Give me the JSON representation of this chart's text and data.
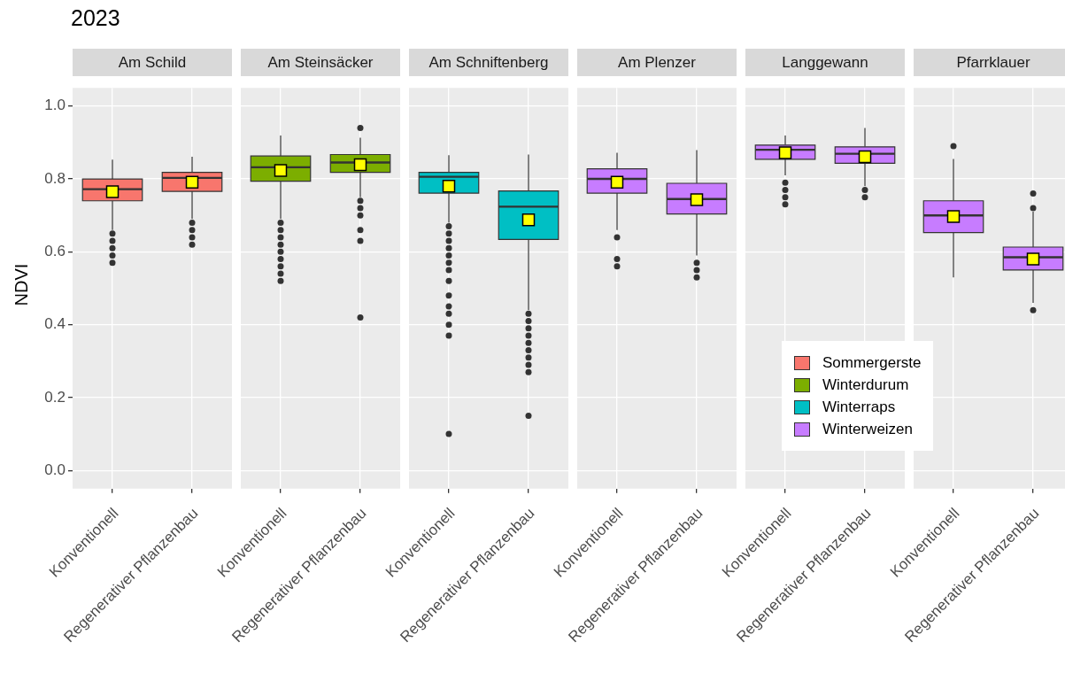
{
  "chart_data": [
    {
      "type": "box",
      "title": "2023",
      "subtitle": "Am Schild",
      "ylabel": "NDVI",
      "categories": [
        "Konventionell",
        "Regenerativer Pflanzenbau"
      ],
      "grid": true,
      "ylim": [
        -0.05,
        1.05
      ],
      "yticks": [
        {
          "value": 0,
          "label": "0.0"
        },
        {
          "value": 0.2,
          "label": "0.2"
        },
        {
          "value": 0.4,
          "label": "0.4"
        },
        {
          "value": 0.6,
          "label": "0.6"
        },
        {
          "value": 0.8,
          "label": "0.8"
        },
        {
          "value": 1,
          "label": "1.0"
        }
      ],
      "series": [
        {
          "name": "Sommergerste",
          "color": "#f8766d",
          "boxes": [
            {
              "low": 0.66,
              "q1": 0.74,
              "median": 0.772,
              "q3": 0.8,
              "high": 0.853,
              "mean": 0.765,
              "outliers": [
                0.65,
                0.63,
                0.61,
                0.59,
                0.57
              ]
            },
            {
              "low": 0.69,
              "q1": 0.766,
              "median": 0.803,
              "q3": 0.818,
              "high": 0.861,
              "mean": 0.791,
              "outliers": [
                0.68,
                0.66,
                0.64,
                0.62
              ]
            }
          ]
        }
      ]
    },
    {
      "type": "box",
      "subtitle": "Am Steinsäcker",
      "categories": [
        "Konventionell",
        "Regenerativer Pflanzenbau"
      ],
      "grid": true,
      "tick_labels": "x",
      "ylim": [
        -0.05,
        1.05
      ],
      "yticks": [
        0,
        0.2,
        0.4,
        0.6,
        0.8,
        1
      ],
      "series": [
        {
          "name": "Winterdurum",
          "color": "#7cae00",
          "boxes": [
            {
              "low": 0.69,
              "q1": 0.794,
              "median": 0.832,
              "q3": 0.863,
              "high": 0.919,
              "mean": 0.823,
              "outliers": [
                0.68,
                0.66,
                0.64,
                0.62,
                0.6,
                0.58,
                0.56,
                0.54,
                0.52
              ]
            },
            {
              "low": 0.75,
              "q1": 0.818,
              "median": 0.845,
              "q3": 0.867,
              "high": 0.913,
              "mean": 0.839,
              "outliers": [
                0.94,
                0.74,
                0.72,
                0.7,
                0.66,
                0.63,
                0.42
              ]
            }
          ]
        }
      ]
    },
    {
      "type": "box",
      "subtitle": "Am Schniftenberg",
      "categories": [
        "Konventionell",
        "Regenerativer Pflanzenbau"
      ],
      "grid": true,
      "tick_labels": "x",
      "ylim": [
        -0.05,
        1.05
      ],
      "yticks": [
        0,
        0.2,
        0.4,
        0.6,
        0.8,
        1
      ],
      "series": [
        {
          "name": "Winterraps",
          "color": "#00bfc4",
          "boxes": [
            {
              "low": 0.68,
              "q1": 0.761,
              "median": 0.806,
              "q3": 0.818,
              "high": 0.865,
              "mean": 0.78,
              "outliers": [
                0.67,
                0.65,
                0.63,
                0.61,
                0.59,
                0.57,
                0.55,
                0.52,
                0.48,
                0.45,
                0.43,
                0.4,
                0.37,
                0.1
              ]
            },
            {
              "low": 0.44,
              "q1": 0.634,
              "median": 0.724,
              "q3": 0.767,
              "high": 0.867,
              "mean": 0.688,
              "outliers": [
                0.43,
                0.41,
                0.39,
                0.37,
                0.35,
                0.33,
                0.31,
                0.29,
                0.27,
                0.15
              ]
            }
          ]
        }
      ]
    },
    {
      "type": "box",
      "subtitle": "Am Plenzer",
      "categories": [
        "Konventionell",
        "Regenerativer Pflanzenbau"
      ],
      "grid": true,
      "tick_labels": "x",
      "legend": "bottom right",
      "ylim": [
        -0.05,
        1.05
      ],
      "yticks": [
        0,
        0.2,
        0.4,
        0.6,
        0.8,
        1
      ],
      "series": [
        {
          "name": "Winterweizen",
          "color": "#c77cff",
          "boxes": [
            {
              "low": 0.66,
              "q1": 0.761,
              "median": 0.8,
              "q3": 0.828,
              "high": 0.872,
              "mean": 0.791,
              "outliers": [
                0.64,
                0.58,
                0.56
              ]
            },
            {
              "low": 0.59,
              "q1": 0.704,
              "median": 0.745,
              "q3": 0.788,
              "high": 0.879,
              "mean": 0.743,
              "outliers": [
                0.57,
                0.55,
                0.53
              ]
            }
          ]
        }
      ]
    },
    {
      "type": "box",
      "subtitle": "Langgewann",
      "categories": [
        "Konventionell",
        "Regenerativer Pflanzenbau"
      ],
      "grid": true,
      "tick_labels": "x",
      "ylim": [
        -0.05,
        1.05
      ],
      "yticks": [
        0,
        0.2,
        0.4,
        0.6,
        0.8,
        1
      ],
      "series": [
        {
          "color": "#c77cff",
          "boxes": [
            {
              "low": 0.81,
              "q1": 0.854,
              "median": 0.88,
              "q3": 0.893,
              "high": 0.919,
              "mean": 0.872,
              "outliers": [
                0.79,
                0.77,
                0.75,
                0.73
              ]
            },
            {
              "low": 0.78,
              "q1": 0.843,
              "median": 0.869,
              "q3": 0.888,
              "high": 0.94,
              "mean": 0.861,
              "outliers": [
                0.77,
                0.75
              ]
            }
          ]
        }
      ]
    },
    {
      "type": "box",
      "subtitle": "Pfarrklauer",
      "categories": [
        "Konventionell",
        "Regenerativer Pflanzenbau"
      ],
      "grid": true,
      "tick_labels": "x",
      "ylim": [
        -0.05,
        1.05
      ],
      "yticks": [
        0,
        0.2,
        0.4,
        0.6,
        0.8,
        1
      ],
      "series": [
        {
          "color": "#c77cff",
          "boxes": [
            {
              "low": 0.53,
              "q1": 0.653,
              "median": 0.7,
              "q3": 0.74,
              "high": 0.855,
              "mean": 0.697,
              "outliers": [
                0.89
              ]
            },
            {
              "low": 0.46,
              "q1": 0.55,
              "median": 0.585,
              "q3": 0.613,
              "high": 0.71,
              "mean": 0.58,
              "outliers": [
                0.76,
                0.72,
                0.44
              ]
            }
          ]
        }
      ]
    }
  ]
}
